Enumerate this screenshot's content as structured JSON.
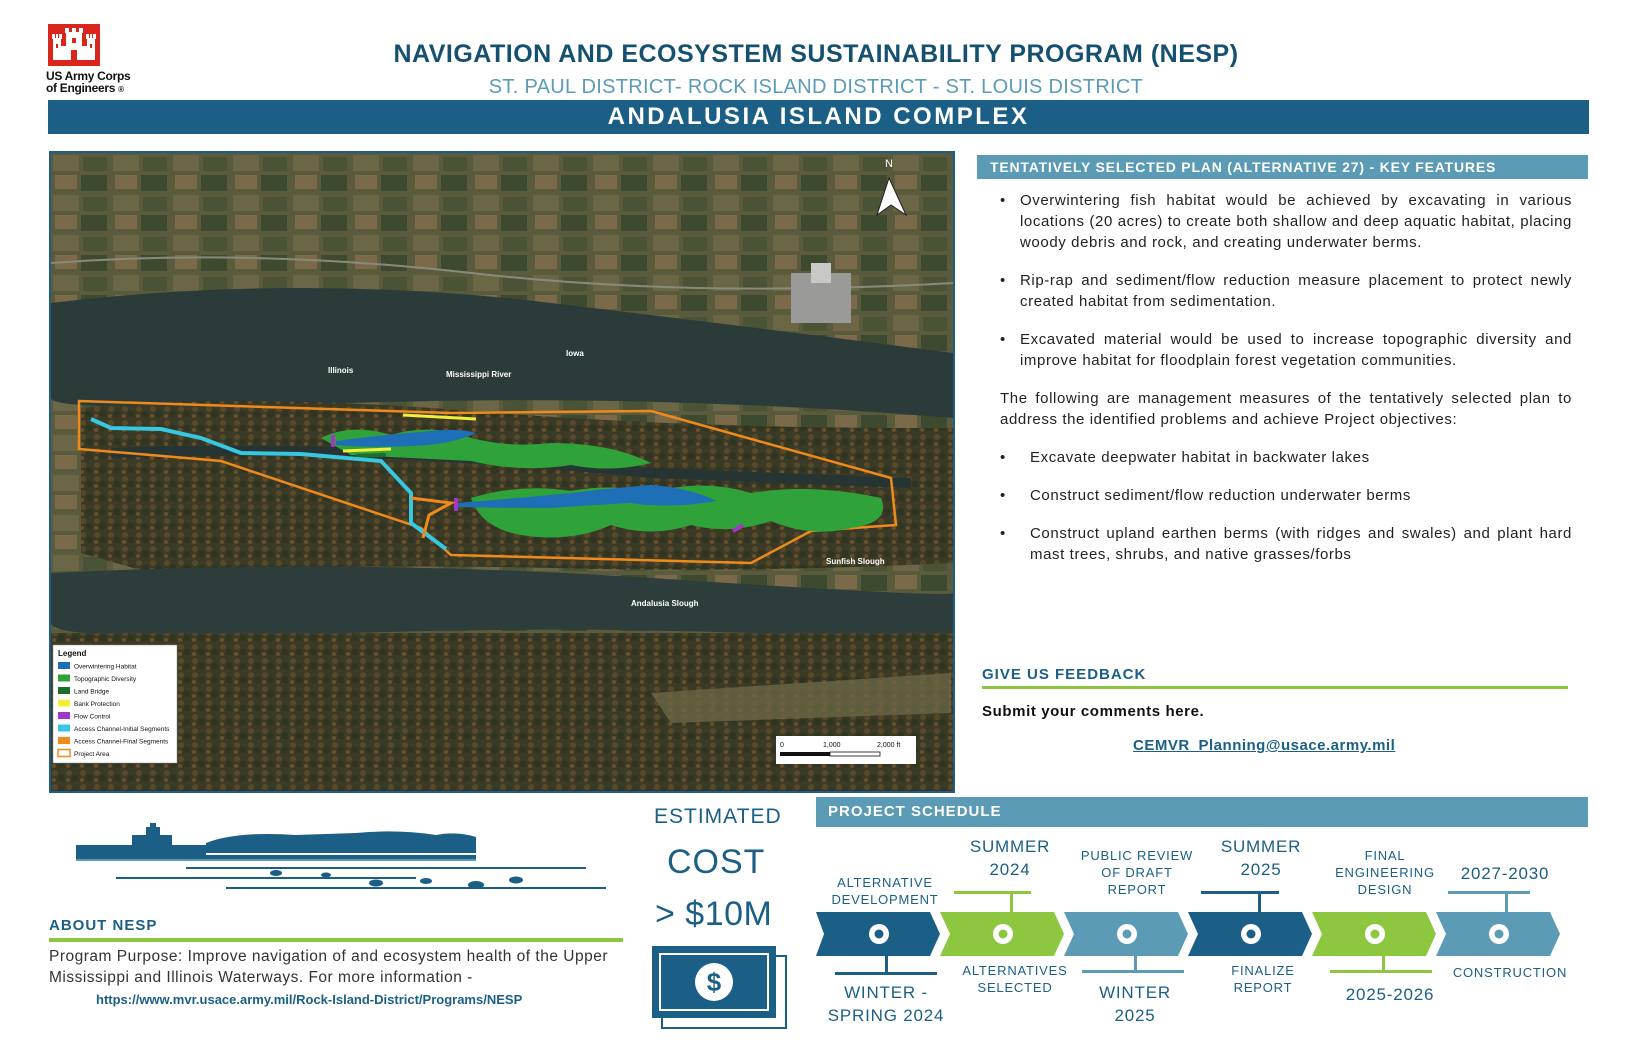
{
  "header": {
    "logo_text_line1": "US Army Corps",
    "logo_text_line2": "of Engineers",
    "logo_mark": "®",
    "title": "NAVIGATION AND ECOSYSTEM SUSTAINABILITY PROGRAM (NESP)",
    "subtitle": "ST. PAUL DISTRICT- ROCK ISLAND DISTRICT - ST. LOUIS DISTRICT",
    "banner": "ANDALUSIA ISLAND COMPLEX"
  },
  "map": {
    "north": "N",
    "labels": {
      "illinois": "Illinois",
      "mississippi": "Mississippi River",
      "iowa": "Iowa",
      "sunfish": "Sunfish Slough",
      "andalusia": "Andalusia Slough"
    },
    "legend_title": "Legend",
    "legend_items": [
      {
        "label": "Overwintering Habitat",
        "color": "#1e6fb5"
      },
      {
        "label": "Topographic Diversity",
        "color": "#2fa33a"
      },
      {
        "label": "Land Bridge",
        "color": "#1d6e2a"
      },
      {
        "label": "Bank Protection",
        "color": "#f2ef3a"
      },
      {
        "label": "Flow Control",
        "color": "#a335c7"
      },
      {
        "label": "Access Channel-Initial Segments",
        "color": "#37c7e0"
      },
      {
        "label": "Access Channel-Final Segments",
        "color": "#f08a1c"
      },
      {
        "label": "Project Area",
        "color": "#f08a1c"
      }
    ],
    "scale": {
      "s0": "0",
      "s1": "1,000",
      "s2": "2,000 ft"
    }
  },
  "plan": {
    "title": "TENTATIVELY SELECTED PLAN (ALTERNATIVE 27) -  KEY FEATURES",
    "bullets": [
      "Overwintering fish habitat would be achieved by excavating in various locations (20 acres) to create both shallow and deep aquatic habitat, placing woody debris and rock, and creating underwater berms.",
      "Rip-rap and sediment/flow reduction measure placement to protect newly created habitat from sedimentation.",
      "Excavated material would be used to increase topographic diversity and improve habitat for floodplain forest vegetation communities."
    ],
    "intro": "The following are management measures of the tentatively selected plan to address the identified problems and achieve Project objectives:",
    "measures": [
      "Excavate deepwater habitat in backwater lakes",
      "Construct sediment/flow reduction underwater berms",
      "Construct upland earthen berms (with ridges and swales) and plant hard mast trees, shrubs, and native grasses/forbs"
    ]
  },
  "feedback": {
    "title": "GIVE US FEEDBACK",
    "text": "Submit your comments here.",
    "email": "CEMVR_Planning@usace.army.mil"
  },
  "about": {
    "title": "ABOUT NESP",
    "text": "Program Purpose: Improve navigation of and ecosystem health of the Upper Mississippi and Illinois Waterways. For more information -",
    "link": "https://www.mvr.usace.army.mil/Rock-Island-District/Programs/NESP"
  },
  "cost": {
    "label": "ESTIMATED",
    "word": "COST",
    "value": "> $10M",
    "symbol": "$"
  },
  "schedule": {
    "title": "PROJECT SCHEDULE",
    "top": {
      "s1": "ALTERNATIVE DEVELOPMENT",
      "s2": "SUMMER 2024",
      "s3": "PUBLIC REVIEW OF DRAFT REPORT",
      "s4": "SUMMER 2025",
      "s5": "FINAL ENGINEERING DESIGN",
      "s6": "2027-2030"
    },
    "bottom": {
      "s1": "WINTER - SPRING 2024",
      "s2": "ALTERNATIVES SELECTED",
      "s3": "WINTER 2025",
      "s4": "FINALIZE REPORT",
      "s5": "2025-2026",
      "s6": "CONSTRUCTION"
    },
    "colors": [
      "#1b5f86",
      "#8dc63f",
      "#5b9bb5",
      "#1b5f86",
      "#8dc63f",
      "#5b9bb5"
    ]
  }
}
